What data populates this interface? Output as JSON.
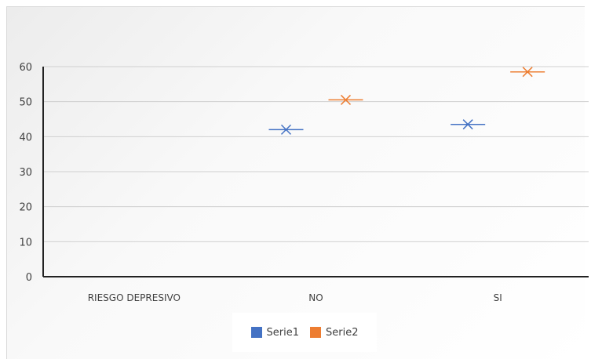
{
  "chart_data": {
    "type": "scatter",
    "categories": [
      "RIESGO DEPRESIVO",
      "NO",
      "SI"
    ],
    "y_ticks": [
      "0",
      "10",
      "20",
      "30",
      "40",
      "50",
      "60"
    ],
    "ylim": [
      0,
      60
    ],
    "grid": true,
    "legend_position": "bottom",
    "series": [
      {
        "name": "Serie1",
        "color": "#4472c4",
        "values": [
          null,
          42,
          43.5
        ]
      },
      {
        "name": "Serie2",
        "color": "#ed7d31",
        "values": [
          null,
          50.5,
          58.5
        ]
      }
    ]
  }
}
